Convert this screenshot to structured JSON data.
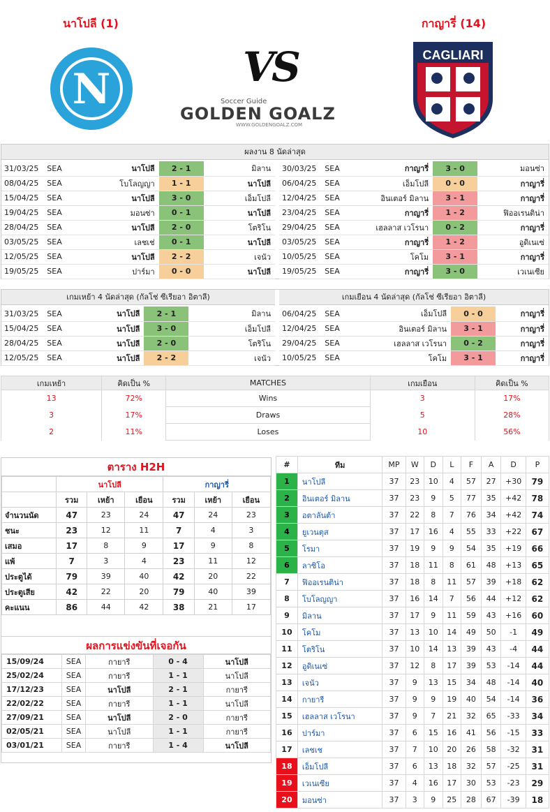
{
  "header": {
    "home_title": "นาโปลี (1)",
    "away_title": "กาญารี่ (14)",
    "vs": "VS",
    "logo_top": "Soccer Guide",
    "logo_main": "GOLDEN GOALZ",
    "logo_url": "WWW.GOLDENGOALZ.COM",
    "away_badge_text": "CAGLIARI"
  },
  "colors": {
    "accent": "#e0141e",
    "win": "#8bc27a",
    "draw": "#f6cf9a",
    "loss": "#f39b9c",
    "napoli": "#29a3d9",
    "cagliari_red": "#c5142d",
    "cagliari_blue": "#1d2f5e"
  },
  "last8": {
    "title": "ผลงาน 8 นัดล่าสุด",
    "home": [
      [
        "31/03/25",
        "SEA",
        "นาโปลี",
        "2 - 1",
        "มิลาน",
        "g",
        1
      ],
      [
        "08/04/25",
        "SEA",
        "โบโลญญา",
        "1 - 1",
        "นาโปลี",
        "y",
        2
      ],
      [
        "15/04/25",
        "SEA",
        "นาโปลี",
        "3 - 0",
        "เอ็มโปลี",
        "g",
        1
      ],
      [
        "19/04/25",
        "SEA",
        "มอนซ่า",
        "0 - 1",
        "นาโปลี",
        "g",
        2
      ],
      [
        "28/04/25",
        "SEA",
        "นาโปลี",
        "2 - 0",
        "โตริโน",
        "g",
        1
      ],
      [
        "03/05/25",
        "SEA",
        "เลชเช่",
        "0 - 1",
        "นาโปลี",
        "g",
        2
      ],
      [
        "12/05/25",
        "SEA",
        "นาโปลี",
        "2 - 2",
        "เจนัว",
        "y",
        1
      ],
      [
        "19/05/25",
        "SEA",
        "ปาร์มา",
        "0 - 0",
        "นาโปลี",
        "y",
        2
      ]
    ],
    "away": [
      [
        "30/03/25",
        "SEA",
        "กาญารี่",
        "3 - 0",
        "มอนซ่า",
        "g",
        1
      ],
      [
        "06/04/25",
        "SEA",
        "เอ็มโปลี",
        "0 - 0",
        "กาญารี่",
        "y",
        2
      ],
      [
        "12/04/25",
        "SEA",
        "อินเตอร์ มิลาน",
        "3 - 1",
        "กาญารี่",
        "r",
        2
      ],
      [
        "23/04/25",
        "SEA",
        "กาญารี่",
        "1 - 2",
        "ฟิออเรนติน่า",
        "r",
        1
      ],
      [
        "29/04/25",
        "SEA",
        "เฮลลาส เวโรนา",
        "0 - 2",
        "กาญารี่",
        "g",
        2
      ],
      [
        "03/05/25",
        "SEA",
        "กาญารี่",
        "1 - 2",
        "อูดิเนเซ่",
        "r",
        1
      ],
      [
        "10/05/25",
        "SEA",
        "โคโม",
        "3 - 1",
        "กาญารี่",
        "r",
        2
      ],
      [
        "19/05/25",
        "SEA",
        "กาญารี่",
        "3 - 0",
        "เวเนเซีย",
        "g",
        1
      ]
    ]
  },
  "last4": {
    "home_title": "เกมเหย้า 4 นัดล่าสุด (กัลโช่ ซีเรียอา อิตาลี)",
    "away_title": "เกมเยือน 4 นัดล่าสุด (กัลโช่ ซีเรียอา อิตาลี)",
    "home": [
      [
        "31/03/25",
        "SEA",
        "นาโปลี",
        "2 - 1",
        "มิลาน",
        "g",
        1
      ],
      [
        "15/04/25",
        "SEA",
        "นาโปลี",
        "3 - 0",
        "เอ็มโปลี",
        "g",
        1
      ],
      [
        "28/04/25",
        "SEA",
        "นาโปลี",
        "2 - 0",
        "โตริโน",
        "g",
        1
      ],
      [
        "12/05/25",
        "SEA",
        "นาโปลี",
        "2 - 2",
        "เจนัว",
        "y",
        1
      ]
    ],
    "away": [
      [
        "06/04/25",
        "SEA",
        "เอ็มโปลี",
        "0 - 0",
        "กาญารี่",
        "y",
        2
      ],
      [
        "12/04/25",
        "SEA",
        "อินเตอร์ มิลาน",
        "3 - 1",
        "กาญารี่",
        "r",
        2
      ],
      [
        "29/04/25",
        "SEA",
        "เฮลลาส เวโรนา",
        "0 - 2",
        "กาญารี่",
        "g",
        2
      ],
      [
        "10/05/25",
        "SEA",
        "โคโม",
        "3 - 1",
        "กาญารี่",
        "r",
        2
      ]
    ]
  },
  "stats": {
    "headers": [
      "เกมเหย้า",
      "คิดเป็น %",
      "MATCHES",
      "เกมเยือน",
      "คิดเป็น %"
    ],
    "rows": [
      [
        "13",
        "72%",
        "Wins",
        "3",
        "17%"
      ],
      [
        "3",
        "17%",
        "Draws",
        "5",
        "28%"
      ],
      [
        "2",
        "11%",
        "Loses",
        "10",
        "56%"
      ]
    ]
  },
  "h2h_table": {
    "title": "ตาราง H2H",
    "home": "นาโปลี",
    "away": "กาญารี่",
    "cols": [
      "รวม",
      "เหย้า",
      "เยือน",
      "รวม",
      "เหย้า",
      "เยือน"
    ],
    "rows": [
      [
        "จำนวนนัด",
        "47",
        "23",
        "24",
        "47",
        "24",
        "23"
      ],
      [
        "ชนะ",
        "23",
        "12",
        "11",
        "7",
        "4",
        "3"
      ],
      [
        "เสมอ",
        "17",
        "8",
        "9",
        "17",
        "9",
        "8"
      ],
      [
        "แพ้",
        "7",
        "3",
        "4",
        "23",
        "11",
        "12"
      ],
      [
        "ประตูได้",
        "79",
        "39",
        "40",
        "42",
        "20",
        "22"
      ],
      [
        "ประตูเสีย",
        "42",
        "22",
        "20",
        "79",
        "40",
        "39"
      ],
      [
        "คะแนน",
        "86",
        "44",
        "42",
        "38",
        "21",
        "17"
      ]
    ]
  },
  "h2h_results": {
    "title": "ผลการแข่งขันที่เจอกัน",
    "rows": [
      [
        "15/09/24",
        "SEA",
        "กายารี",
        "0 - 4",
        "นาโปลี",
        2
      ],
      [
        "25/02/24",
        "SEA",
        "กายารี",
        "1 - 1",
        "นาโปลี",
        0
      ],
      [
        "17/12/23",
        "SEA",
        "นาโปลี",
        "2 - 1",
        "กายารี",
        1
      ],
      [
        "22/02/22",
        "SEA",
        "กายารี",
        "1 - 1",
        "นาโปลี",
        0
      ],
      [
        "27/09/21",
        "SEA",
        "นาโปลี",
        "2 - 0",
        "กายารี",
        1
      ],
      [
        "02/05/21",
        "SEA",
        "นาโปลี",
        "1 - 1",
        "กายารี",
        0
      ],
      [
        "03/01/21",
        "SEA",
        "กายารี",
        "1 - 4",
        "นาโปลี",
        2
      ]
    ]
  },
  "league": {
    "headers": [
      "#",
      "ทีม",
      "MP",
      "W",
      "D",
      "L",
      "F",
      "A",
      "D",
      "P"
    ],
    "rows": [
      [
        "1",
        "นาโปลี",
        "37",
        "23",
        "10",
        "4",
        "57",
        "27",
        "+30",
        "79",
        "gr"
      ],
      [
        "2",
        "อินเตอร์ มิลาน",
        "37",
        "23",
        "9",
        "5",
        "77",
        "35",
        "+42",
        "78",
        "gr"
      ],
      [
        "3",
        "อตาลันต้า",
        "37",
        "22",
        "8",
        "7",
        "76",
        "34",
        "+42",
        "74",
        "gr"
      ],
      [
        "4",
        "ยูเวนตุส",
        "37",
        "17",
        "16",
        "4",
        "55",
        "33",
        "+22",
        "67",
        "gr"
      ],
      [
        "5",
        "โรมา",
        "37",
        "19",
        "9",
        "9",
        "54",
        "35",
        "+19",
        "66",
        "gr"
      ],
      [
        "6",
        "ลาซิโอ",
        "37",
        "18",
        "11",
        "8",
        "61",
        "48",
        "+13",
        "65",
        "gr"
      ],
      [
        "7",
        "ฟิออเรนติน่า",
        "37",
        "18",
        "8",
        "11",
        "57",
        "39",
        "+18",
        "62",
        ""
      ],
      [
        "8",
        "โบโลญญา",
        "37",
        "16",
        "14",
        "7",
        "56",
        "44",
        "+12",
        "62",
        ""
      ],
      [
        "9",
        "มิลาน",
        "37",
        "17",
        "9",
        "11",
        "59",
        "43",
        "+16",
        "60",
        ""
      ],
      [
        "10",
        "โคโม",
        "37",
        "13",
        "10",
        "14",
        "49",
        "50",
        "-1",
        "49",
        ""
      ],
      [
        "11",
        "โตริโน",
        "37",
        "10",
        "14",
        "13",
        "39",
        "43",
        "-4",
        "44",
        ""
      ],
      [
        "12",
        "อูดิเนเซ่",
        "37",
        "12",
        "8",
        "17",
        "39",
        "53",
        "-14",
        "44",
        ""
      ],
      [
        "13",
        "เจนัว",
        "37",
        "9",
        "13",
        "15",
        "34",
        "48",
        "-14",
        "40",
        ""
      ],
      [
        "14",
        "กายารี",
        "37",
        "9",
        "9",
        "19",
        "40",
        "54",
        "-14",
        "36",
        ""
      ],
      [
        "15",
        "เฮลลาส เวโรนา",
        "37",
        "9",
        "7",
        "21",
        "32",
        "65",
        "-33",
        "34",
        ""
      ],
      [
        "16",
        "ปาร์มา",
        "37",
        "6",
        "15",
        "16",
        "41",
        "56",
        "-15",
        "33",
        ""
      ],
      [
        "17",
        "เลชเช",
        "37",
        "7",
        "10",
        "20",
        "26",
        "58",
        "-32",
        "31",
        ""
      ],
      [
        "18",
        "เอ็มโปลี",
        "37",
        "6",
        "13",
        "18",
        "32",
        "57",
        "-25",
        "31",
        "rd"
      ],
      [
        "19",
        "เวเนเซีย",
        "37",
        "4",
        "16",
        "17",
        "30",
        "53",
        "-23",
        "29",
        "rd"
      ],
      [
        "20",
        "มอนซ่า",
        "37",
        "3",
        "9",
        "25",
        "28",
        "67",
        "-39",
        "18",
        "rd"
      ]
    ]
  }
}
